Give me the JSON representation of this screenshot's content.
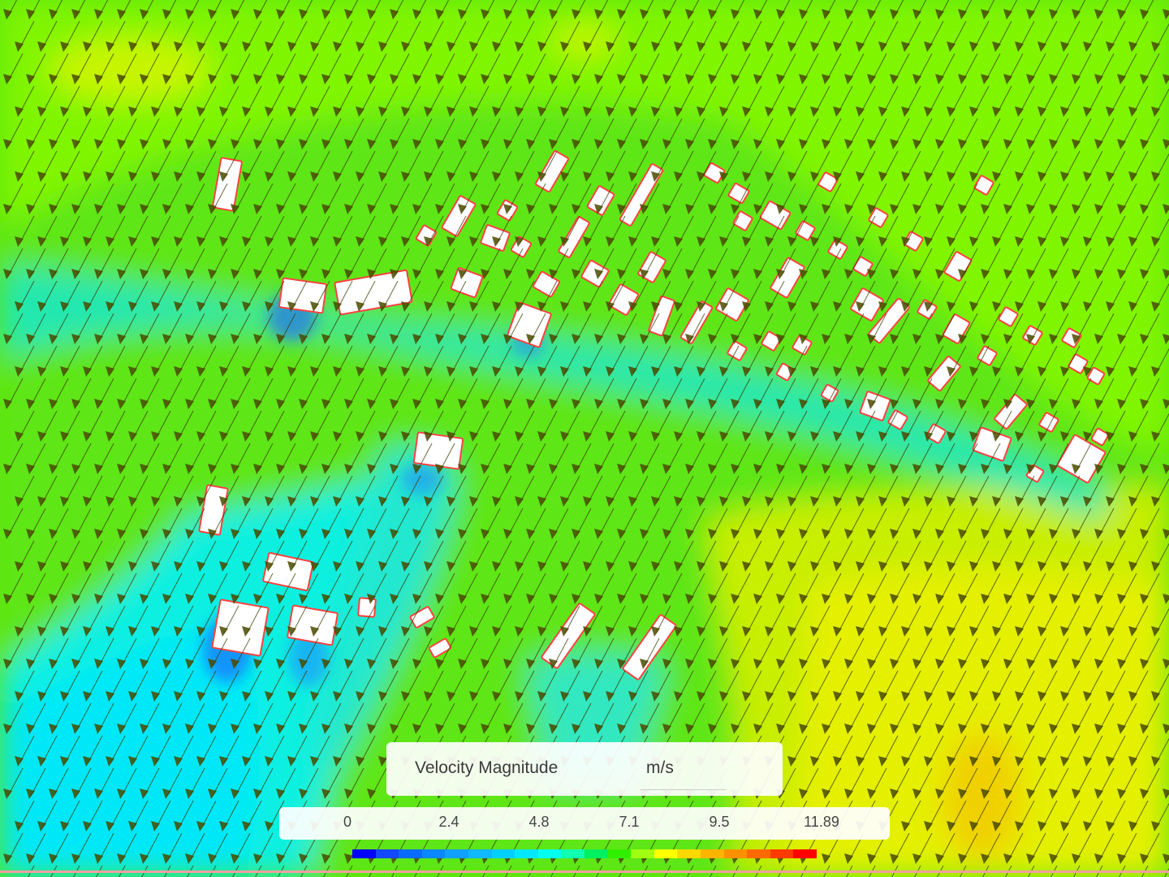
{
  "legend": {
    "title": "Velocity Magnitude",
    "unit": "m/s",
    "ticks": [
      "0",
      "2.4",
      "4.8",
      "7.1",
      "9.5",
      "11.89"
    ],
    "min": 0,
    "max": 11.89,
    "colormap": [
      "#0000ff",
      "#1448ff",
      "#0a6cff",
      "#0a88ff",
      "#10a0ff",
      "#10b8ff",
      "#00d0ff",
      "#00e8ff",
      "#00fff0",
      "#10ffb0",
      "#00f060",
      "#30f000",
      "#a0ff10",
      "#ffff00",
      "#ffd800",
      "#ffb400",
      "#ff9000",
      "#ff6a00",
      "#ff3a00",
      "#ff0000"
    ]
  },
  "colors": {
    "building_fill": "#ffffff",
    "building_outline": "#ff4040",
    "arrow": "#3a3a00"
  }
}
